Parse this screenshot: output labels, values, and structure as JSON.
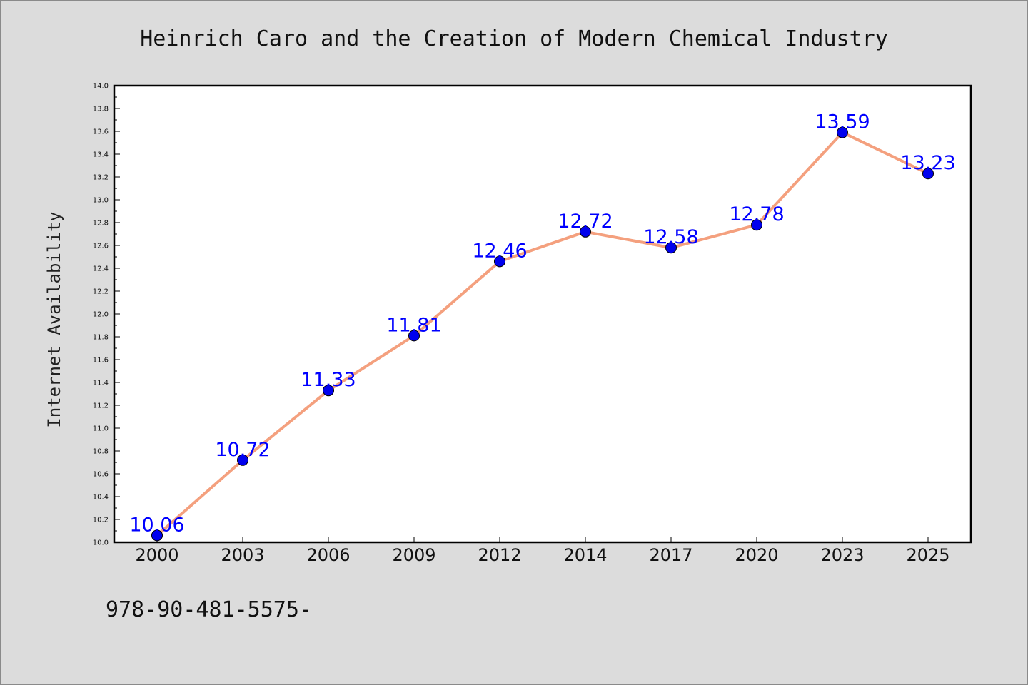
{
  "chart_data": {
    "type": "line",
    "title": "Heinrich Caro and the Creation of Modern Chemical Industry",
    "xlabel": "",
    "ylabel": "Internet Availability",
    "categories": [
      "2000",
      "2003",
      "2006",
      "2009",
      "2012",
      "2014",
      "2017",
      "2020",
      "2023",
      "2025"
    ],
    "series": [
      {
        "values": [
          10.06,
          10.72,
          11.33,
          11.81,
          12.46,
          12.72,
          12.58,
          12.78,
          13.59,
          13.23
        ],
        "labels": [
          "10.06",
          "10.72",
          "11.33",
          "11.81",
          "12.46",
          "12.72",
          "12.58",
          "12.78",
          "13.59",
          "13.23"
        ]
      }
    ],
    "ylim": [
      10.0,
      14.0
    ],
    "y_ticks": [
      "10.0",
      "10.2",
      "10.4",
      "10.6",
      "10.8",
      "11.0",
      "11.2",
      "11.4",
      "11.6",
      "11.8",
      "12.0",
      "12.2",
      "12.4",
      "12.6",
      "12.8",
      "13.0",
      "13.2",
      "13.4",
      "13.6",
      "13.8",
      "14.0"
    ],
    "grid": false,
    "line_color": "#f4a07e",
    "marker_color": "#0000ee",
    "label_color": "#0000ff",
    "background_color": "#dcdcdc",
    "plot_background_color": "#ffffff"
  },
  "footer": {
    "isbn": "978-90-481-5575-"
  }
}
